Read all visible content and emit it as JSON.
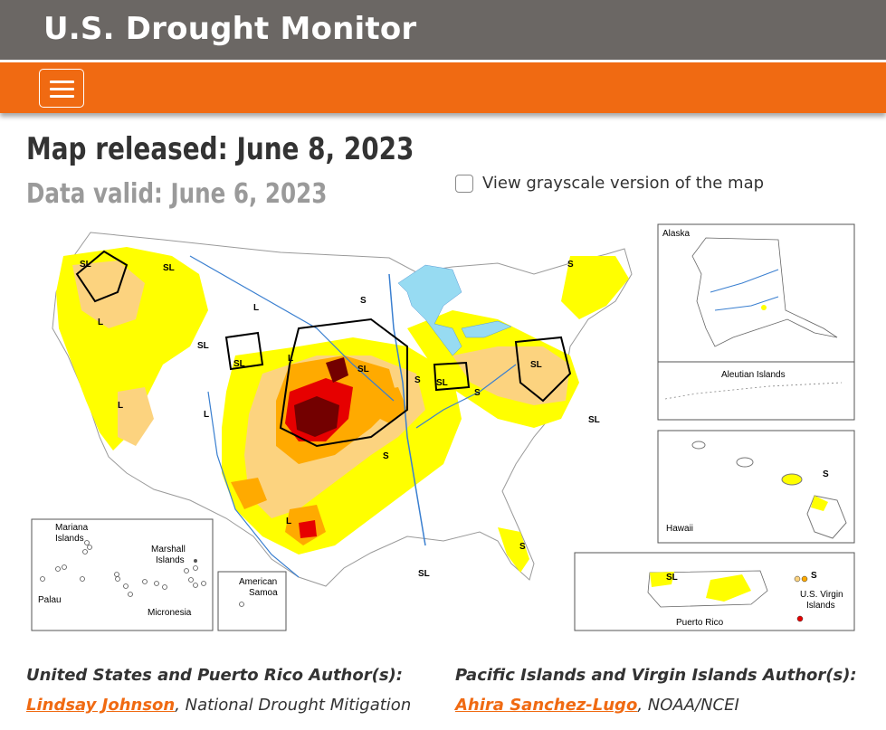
{
  "header": {
    "title": "U.S. Drought Monitor"
  },
  "navbar": {
    "menu_icon": "hamburger-menu-icon"
  },
  "main": {
    "released": "Map released: June 8, 2023",
    "valid": "Data valid: June 6, 2023",
    "grayscale_label": "View grayscale version of the map"
  },
  "map": {
    "inset_labels": {
      "alaska": "Alaska",
      "aleutian": "Aleutian Islands",
      "hawaii": "Hawaii",
      "puerto_rico": "Puerto Rico",
      "usvi_1": "U.S. Virgin",
      "usvi_2": "Islands",
      "mariana_1": "Mariana",
      "mariana_2": "Islands",
      "marshall_1": "Marshall",
      "marshall_2": "Islands",
      "palau": "Palau",
      "micronesia": "Micronesia",
      "samoa_1": "American",
      "samoa_2": "Samoa"
    },
    "impact_labels": [
      "SL",
      "SL",
      "L",
      "L",
      "SL",
      "SL",
      "L",
      "S",
      "SL",
      "SL",
      "S",
      "SL",
      "S",
      "L",
      "L",
      "S",
      "L",
      "S",
      "SL",
      "SL",
      "S",
      "S",
      "SL",
      "S"
    ],
    "colors": {
      "D0": "#ffff00",
      "D1": "#fcd37f",
      "D2": "#ffaa00",
      "D3": "#e60000",
      "D4": "#730000",
      "water": "#97dbf2"
    }
  },
  "authors": {
    "us_heading": "United States and Puerto Rico Author(s):",
    "us_name": "Lindsay Johnson",
    "us_org": ", National Drought Mitigation",
    "pi_heading": "Pacific Islands and Virgin Islands Author(s):",
    "pi_name": "Ahira Sanchez-Lugo",
    "pi_org": ", NOAA/NCEI"
  }
}
